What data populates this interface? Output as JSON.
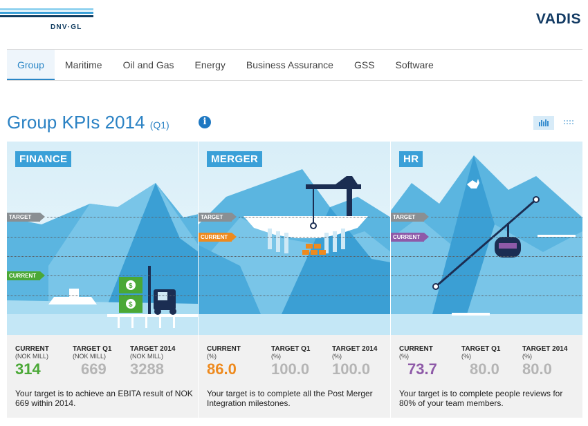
{
  "header": {
    "logo_text": "DNV·GL",
    "brand": "VADIS",
    "logo_colors": [
      "#8fd1ef",
      "#3aa0d8",
      "#0f3b5f"
    ]
  },
  "nav": {
    "items": [
      "Group",
      "Maritime",
      "Oil and Gas",
      "Energy",
      "Business Assurance",
      "GSS",
      "Software"
    ],
    "active": "Group"
  },
  "page": {
    "title": "Group KPIs 2014",
    "period": "(Q1)",
    "info_icon": "info-icon",
    "view_icons": [
      "bar-chart-icon",
      "grid-icon"
    ]
  },
  "colors": {
    "accent": "#2b82c4",
    "current_green": "#4aa836",
    "current_orange": "#ee8a1e",
    "current_purple": "#8e5aa8",
    "target_gray": "#b5b5b5"
  },
  "panels": [
    {
      "label": "FINANCE",
      "target_marker": "TARGET",
      "current_marker": "CURRENT",
      "current_header": "CURRENT",
      "current_unit": "(NOK MILL)",
      "current_value": "314",
      "tq1_header": "TARGET Q1",
      "tq1_unit": "(NOK MILL)",
      "tq1_value": "669",
      "t2014_header": "TARGET 2014",
      "t2014_unit": "(NOK MILL)",
      "t2014_value": "3288",
      "description": "Your target is to achieve an EBITA result of NOK 669 within 2014."
    },
    {
      "label": "MERGER",
      "target_marker": "TARGET",
      "current_marker": "CURRENT",
      "current_header": "CURRENT",
      "current_unit": "(%)",
      "current_value": "86.0",
      "tq1_header": "TARGET Q1",
      "tq1_unit": "(%)",
      "tq1_value": "100.0",
      "t2014_header": "TARGET 2014",
      "t2014_unit": "(%)",
      "t2014_value": "100.0",
      "description": "Your target is to complete all the Post Merger Integration milestones."
    },
    {
      "label": "HR",
      "target_marker": "TARGET",
      "current_marker": "CURRENT",
      "current_header": "CURRENT",
      "current_unit": "(%)",
      "current_value": "73.7",
      "tq1_header": "TARGET Q1",
      "tq1_unit": "(%)",
      "tq1_value": "80.0",
      "t2014_header": "TARGET 2014",
      "t2014_unit": "(%)",
      "t2014_value": "80.0",
      "description": "Your target is to complete people reviews for 80% of your team members."
    }
  ]
}
